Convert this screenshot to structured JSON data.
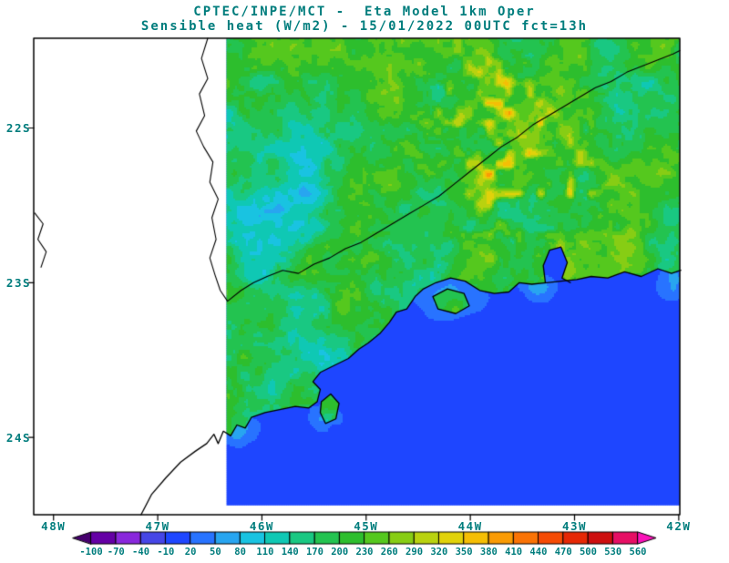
{
  "style": {
    "text_color": "#007d7d",
    "map_line_color": "#000000",
    "background": "#ffffff"
  },
  "header": {
    "title_line1": "CPTEC/INPE/MCT -  Eta Model 1km Oper",
    "title_line2": "Sensible heat (W/m2) - 15/01/2022 00UTC fct=13h"
  },
  "chart_data": {
    "type": "heatmap",
    "title": "CPTEC/INPE/MCT - Eta Model 1km Oper",
    "subtitle": "Sensible heat (W/m2) - 15/01/2022 00UTC fct=13h",
    "variable": "Sensible heat",
    "units": "W/m2",
    "model": "Eta Model 1km Oper",
    "init_time": "15/01/2022 00UTC",
    "forecast": "fct=13h",
    "axes": {
      "lat_ticks": [
        {
          "label": "22S",
          "lat": 22
        },
        {
          "label": "23S",
          "lat": 23
        },
        {
          "label": "24S",
          "lat": 24
        }
      ],
      "lon_ticks": [
        {
          "label": "48W",
          "lon": 48
        },
        {
          "label": "47W",
          "lon": 47
        },
        {
          "label": "46W",
          "lon": 46
        },
        {
          "label": "45W",
          "lon": 45
        },
        {
          "label": "44W",
          "lon": 44
        },
        {
          "label": "43W",
          "lon": 43
        },
        {
          "label": "42W",
          "lon": 42
        }
      ],
      "lon_range_w": [
        48.19,
        41.99
      ],
      "lat_range_s": [
        21.42,
        24.5
      ],
      "grid": false
    },
    "raster_extent": {
      "lon_w": [
        46.34,
        41.99
      ],
      "lat_s": [
        21.42,
        24.44
      ]
    },
    "colorbar": {
      "levels": [
        -100,
        -70,
        -40,
        -10,
        20,
        50,
        80,
        110,
        140,
        170,
        200,
        230,
        260,
        290,
        320,
        350,
        380,
        410,
        440,
        470,
        500,
        530,
        560
      ],
      "labels": [
        "-100",
        "-70",
        "-40",
        "-10",
        "20",
        "50",
        "80",
        "110",
        "140",
        "170",
        "200",
        "230",
        "260",
        "290",
        "320",
        "350",
        "380",
        "410",
        "440",
        "470",
        "500",
        "530",
        "560"
      ],
      "colors": [
        "#46006e",
        "#6400a5",
        "#8928dc",
        "#4646e6",
        "#1e46ff",
        "#2873ff",
        "#28a5f0",
        "#19c3e1",
        "#0fc8b4",
        "#19c882",
        "#23c350",
        "#2dbe2d",
        "#55c81e",
        "#87cd14",
        "#b9d20f",
        "#e1d20a",
        "#f5be05",
        "#fa9b05",
        "#fa7305",
        "#f54b05",
        "#e62805",
        "#cd0f0f",
        "#e60f64",
        "#fa14b9"
      ],
      "position": "bottom",
      "arrow_ends": true
    },
    "field_summary": {
      "ocean_wm2": 10,
      "land_typical_wm2": [
        140,
        260
      ],
      "cool_patches_wm2": [
        80,
        140
      ],
      "hotspot_wm2": [
        290,
        360
      ],
      "description": "Green land field (~200 W/m2) with teal/cyan patches over Serra do Mar and NW sector, yellow hotspots NE interior near 43.4W/22.4S, uniform deep-blue ocean (~10 W/m2)"
    },
    "zones": {
      "cool": [
        {
          "lon": 45.85,
          "lat": 22.35,
          "slon": 0.75,
          "slat": 0.85,
          "amp": 70
        },
        {
          "lon": 46.2,
          "lat": 23.3,
          "slon": 0.25,
          "slat": 0.3,
          "amp": 45
        },
        {
          "lon": 45.35,
          "lat": 23.45,
          "slon": 0.55,
          "slat": 0.18,
          "amp": 55
        },
        {
          "lon": 44.55,
          "lat": 23.05,
          "slon": 0.5,
          "slat": 0.15,
          "amp": 45
        },
        {
          "lon": 42.12,
          "lat": 22.7,
          "slon": 0.2,
          "slat": 0.28,
          "amp": 90
        }
      ],
      "warm": [
        {
          "lon": 43.42,
          "lat": 22.35,
          "slon": 0.75,
          "slat": 0.42,
          "amp": 190
        },
        {
          "lon": 43.9,
          "lat": 21.75,
          "slon": 0.6,
          "slat": 0.35,
          "amp": 130
        }
      ],
      "ocean_patches": [
        {
          "lon": 44.2,
          "lat": 23.1,
          "slon": 0.25,
          "slat": 0.1,
          "amp": 85
        },
        {
          "lon": 43.35,
          "lat": 23.03,
          "slon": 0.15,
          "slat": 0.07,
          "amp": 70
        },
        {
          "lon": 46.22,
          "lat": 23.97,
          "slon": 0.14,
          "slat": 0.08,
          "amp": 75
        },
        {
          "lon": 45.4,
          "lat": 23.87,
          "slon": 0.12,
          "slat": 0.07,
          "amp": 65
        },
        {
          "lon": 42.06,
          "lat": 22.99,
          "slon": 0.1,
          "slat": 0.09,
          "amp": 80
        }
      ]
    },
    "geo": {
      "coastline": [
        [
          47.16,
          24.5
        ],
        [
          47.06,
          24.37
        ],
        [
          46.92,
          24.26
        ],
        [
          46.78,
          24.16
        ],
        [
          46.64,
          24.09
        ],
        [
          46.53,
          24.04
        ],
        [
          46.46,
          23.98
        ],
        [
          46.42,
          24.04
        ],
        [
          46.37,
          23.96
        ],
        [
          46.3,
          23.99
        ],
        [
          46.24,
          23.92
        ],
        [
          46.16,
          23.94
        ],
        [
          46.1,
          23.87
        ],
        [
          45.97,
          23.84
        ],
        [
          45.83,
          23.82
        ],
        [
          45.68,
          23.8
        ],
        [
          45.55,
          23.81
        ],
        [
          45.47,
          23.77
        ],
        [
          45.44,
          23.69
        ],
        [
          45.51,
          23.64
        ],
        [
          45.44,
          23.58
        ],
        [
          45.29,
          23.53
        ],
        [
          45.17,
          23.49
        ],
        [
          45.07,
          23.43
        ],
        [
          44.98,
          23.39
        ],
        [
          44.87,
          23.33
        ],
        [
          44.78,
          23.26
        ],
        [
          44.71,
          23.19
        ],
        [
          44.61,
          23.17
        ],
        [
          44.53,
          23.09
        ],
        [
          44.45,
          23.04
        ],
        [
          44.33,
          23.0
        ],
        [
          44.19,
          22.97
        ],
        [
          44.05,
          22.99
        ],
        [
          43.91,
          23.05
        ],
        [
          43.77,
          23.07
        ],
        [
          43.63,
          23.06
        ],
        [
          43.53,
          23.0
        ],
        [
          43.41,
          23.01
        ],
        [
          43.27,
          23.0
        ],
        [
          43.13,
          22.99
        ],
        [
          42.98,
          22.98
        ],
        [
          42.84,
          22.96
        ],
        [
          42.68,
          22.97
        ],
        [
          42.52,
          22.93
        ],
        [
          42.36,
          22.96
        ],
        [
          42.2,
          22.91
        ],
        [
          42.07,
          22.94
        ],
        [
          41.98,
          22.92
        ]
      ],
      "state_border": [
        [
          46.52,
          21.42
        ],
        [
          46.58,
          21.55
        ],
        [
          46.52,
          21.68
        ],
        [
          46.6,
          21.78
        ],
        [
          46.55,
          21.92
        ],
        [
          46.63,
          22.02
        ],
        [
          46.56,
          22.12
        ],
        [
          46.47,
          22.22
        ],
        [
          46.5,
          22.35
        ],
        [
          46.42,
          22.46
        ],
        [
          46.48,
          22.58
        ],
        [
          46.44,
          22.72
        ],
        [
          46.5,
          22.84
        ],
        [
          46.45,
          22.95
        ],
        [
          46.4,
          23.05
        ],
        [
          46.33,
          23.12
        ],
        [
          46.2,
          23.05
        ],
        [
          46.08,
          23.0
        ],
        [
          45.95,
          22.96
        ],
        [
          45.8,
          22.92
        ],
        [
          45.65,
          22.94
        ],
        [
          45.5,
          22.88
        ],
        [
          45.35,
          22.84
        ],
        [
          45.2,
          22.78
        ],
        [
          45.05,
          22.74
        ],
        [
          44.9,
          22.68
        ],
        [
          44.75,
          22.62
        ],
        [
          44.6,
          22.56
        ],
        [
          44.45,
          22.5
        ],
        [
          44.3,
          22.44
        ],
        [
          44.15,
          22.36
        ],
        [
          44.0,
          22.28
        ],
        [
          43.85,
          22.2
        ],
        [
          43.7,
          22.12
        ],
        [
          43.55,
          22.06
        ],
        [
          43.4,
          21.98
        ],
        [
          43.25,
          21.92
        ],
        [
          43.1,
          21.86
        ],
        [
          42.95,
          21.8
        ],
        [
          42.8,
          21.74
        ],
        [
          42.65,
          21.7
        ],
        [
          42.5,
          21.64
        ],
        [
          42.35,
          21.6
        ],
        [
          42.2,
          21.56
        ],
        [
          42.05,
          21.52
        ],
        [
          41.99,
          21.5
        ]
      ],
      "river": [
        [
          48.18,
          22.55
        ],
        [
          48.1,
          22.62
        ],
        [
          48.15,
          22.72
        ],
        [
          48.07,
          22.8
        ],
        [
          48.12,
          22.9
        ]
      ],
      "islands": [
        [
          [
            45.43,
            23.77
          ],
          [
            45.34,
            23.72
          ],
          [
            45.26,
            23.78
          ],
          [
            45.29,
            23.88
          ],
          [
            45.39,
            23.91
          ],
          [
            45.44,
            23.84
          ]
        ],
        [
          [
            44.36,
            23.09
          ],
          [
            44.22,
            23.04
          ],
          [
            44.06,
            23.07
          ],
          [
            44.01,
            23.15
          ],
          [
            44.14,
            23.2
          ],
          [
            44.31,
            23.17
          ]
        ]
      ],
      "bay": [
        [
          43.28,
          23.0
        ],
        [
          43.3,
          22.89
        ],
        [
          43.24,
          22.79
        ],
        [
          43.13,
          22.77
        ],
        [
          43.07,
          22.87
        ],
        [
          43.12,
          22.97
        ],
        [
          43.04,
          23.0
        ]
      ]
    }
  }
}
